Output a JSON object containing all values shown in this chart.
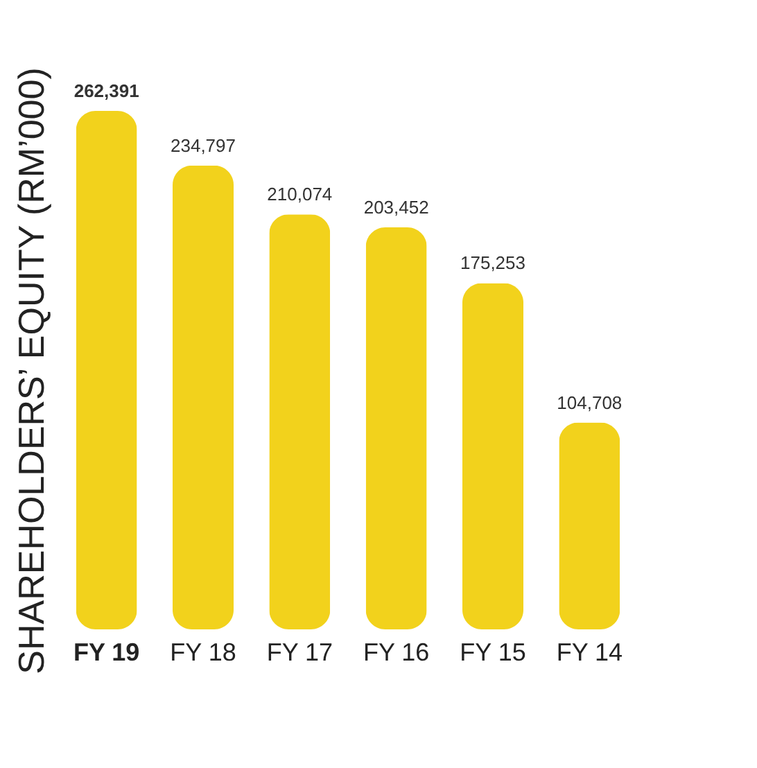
{
  "chart_data": {
    "type": "bar",
    "ylabel": "SHAREHOLDERS’ EQUITY (RM’000)",
    "categories": [
      "FY 19",
      "FY 18",
      "FY 17",
      "FY 16",
      "FY 15",
      "FY 14"
    ],
    "values": [
      262391,
      234797,
      210074,
      203452,
      175253,
      104708
    ],
    "value_labels": [
      "262,391",
      "234,797",
      "210,074",
      "203,452",
      "175,253",
      "104,708"
    ],
    "color": "#f2d21c",
    "tick_labels": "x"
  }
}
